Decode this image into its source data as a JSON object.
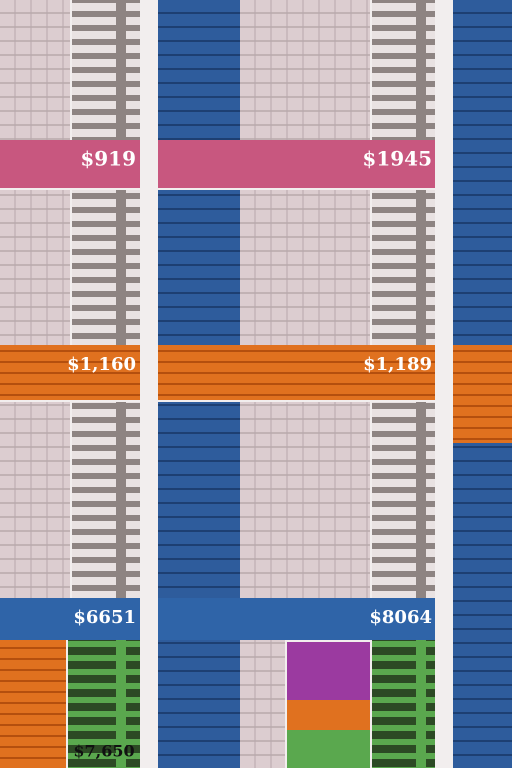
{
  "bands": {
    "pink": [
      "$919",
      "$1945"
    ],
    "orange": [
      "$1,160",
      "$1,189"
    ],
    "blue": [
      "$6651",
      "$8064"
    ]
  },
  "footer": [
    "$7,650"
  ]
}
